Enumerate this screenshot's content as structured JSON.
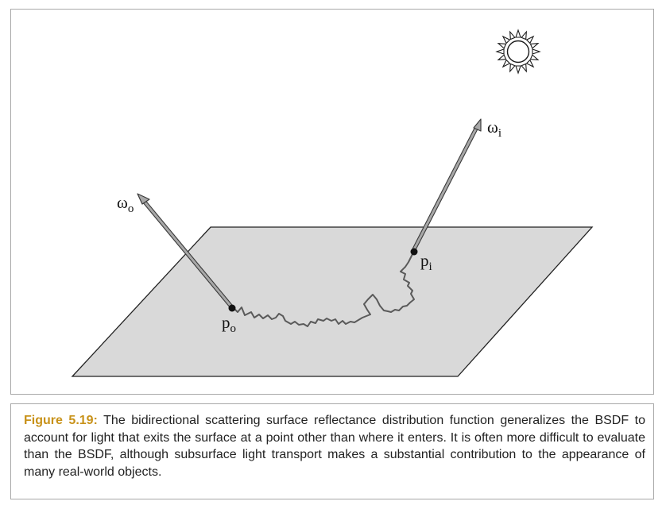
{
  "figure": {
    "labels": {
      "omega_o": "ω",
      "omega_o_sub": "o",
      "omega_i": "ω",
      "omega_i_sub": "i",
      "p_o": "p",
      "p_o_sub": "o",
      "p_i": "p",
      "p_i_sub": "i"
    },
    "icons": {
      "light_source": "sun-icon"
    },
    "colors": {
      "surface_fill": "#d9d9d9",
      "surface_stroke": "#222222",
      "path_stroke": "#5a5a5a",
      "arrow_fill": "#9a9a9a",
      "caption_label": "#c8921a"
    }
  },
  "caption": {
    "label": "Figure 5.19:",
    "text": "The bidirectional scattering surface reflectance distribution function generalizes the BSDF to account for light that exits the surface at a point other than where it enters. It is often more difficult to evaluate than the BSDF, although subsurface light transport makes a substantial contribution to the appearance of many real-world objects."
  }
}
